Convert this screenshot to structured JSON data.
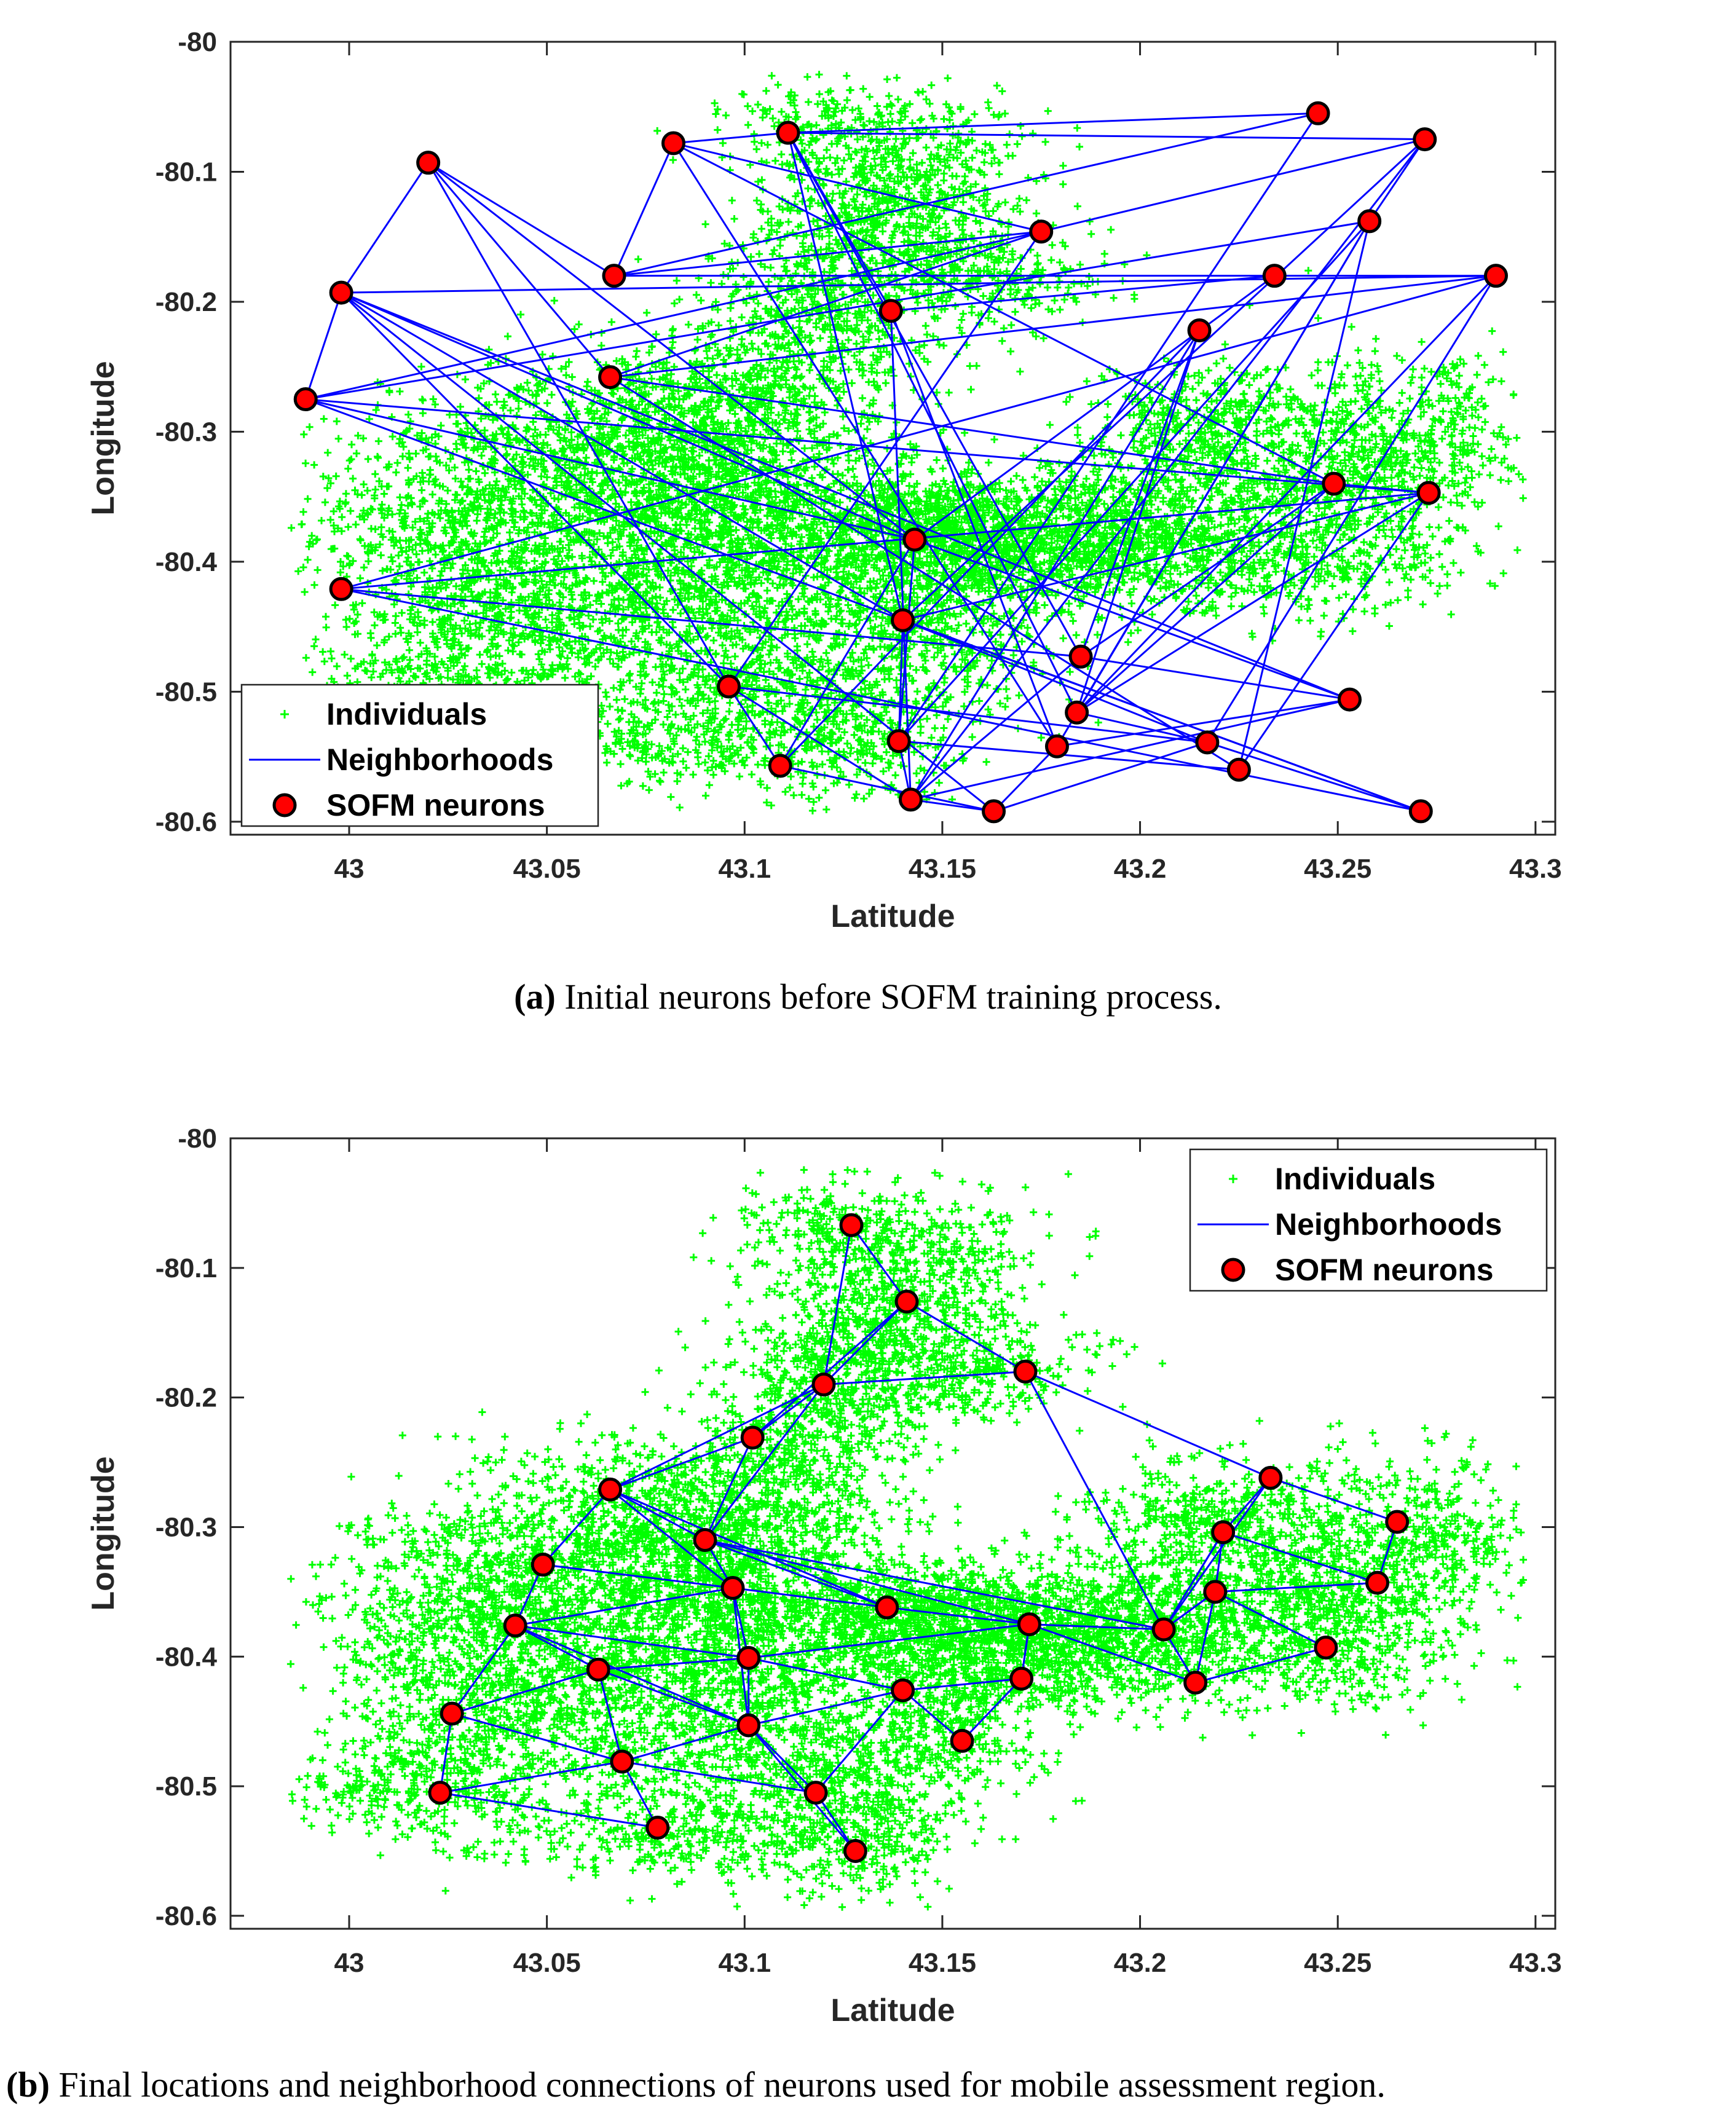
{
  "colors": {
    "individuals": "#00ff00",
    "neighborhoods": "#0000ff",
    "neuron_fill": "#ff0000",
    "neuron_edge": "#000000",
    "axes": "#262626"
  },
  "chart_data": [
    {
      "id": "a",
      "type": "scatter",
      "xlabel": "Latitude",
      "ylabel": "Longitude",
      "xlim": [
        42.97,
        43.305
      ],
      "ylim": [
        -80.61,
        -80.0
      ],
      "xticks": [
        43,
        43.05,
        43.1,
        43.15,
        43.2,
        43.25,
        43.3
      ],
      "yticks": [
        -80,
        -80.1,
        -80.2,
        -80.3,
        -80.4,
        -80.5,
        -80.6
      ],
      "xtick_labels": [
        "43",
        "43.05",
        "43.1",
        "43.15",
        "43.2",
        "43.25",
        "43.3"
      ],
      "ytick_labels": [
        "-80",
        "-80.1",
        "-80.2",
        "-80.3",
        "-80.4",
        "-80.5",
        "-80.6"
      ],
      "grid": false,
      "legend": {
        "position": "bottom-left",
        "entries": [
          "Individuals",
          "Neighborhoods",
          "SOFM neurons"
        ]
      },
      "caption_label": "(a)",
      "caption_text": " Initial neurons before SOFM training process.",
      "neurons": [
        [
          43.02,
          -80.093
        ],
        [
          43.082,
          -80.078
        ],
        [
          43.111,
          -80.07
        ],
        [
          43.245,
          -80.055
        ],
        [
          43.272,
          -80.075
        ],
        [
          42.998,
          -80.193
        ],
        [
          43.067,
          -80.18
        ],
        [
          43.175,
          -80.146
        ],
        [
          43.258,
          -80.138
        ],
        [
          43.234,
          -80.18
        ],
        [
          43.29,
          -80.18
        ],
        [
          43.137,
          -80.207
        ],
        [
          43.215,
          -80.222
        ],
        [
          42.989,
          -80.275
        ],
        [
          43.066,
          -80.258
        ],
        [
          43.249,
          -80.34
        ],
        [
          43.273,
          -80.347
        ],
        [
          43.143,
          -80.383
        ],
        [
          42.998,
          -80.421
        ],
        [
          43.14,
          -80.445
        ],
        [
          43.185,
          -80.473
        ],
        [
          43.096,
          -80.496
        ],
        [
          43.184,
          -80.516
        ],
        [
          43.253,
          -80.506
        ],
        [
          43.139,
          -80.538
        ],
        [
          43.179,
          -80.542
        ],
        [
          43.217,
          -80.539
        ],
        [
          43.109,
          -80.557
        ],
        [
          43.225,
          -80.56
        ],
        [
          43.142,
          -80.583
        ],
        [
          43.163,
          -80.592
        ],
        [
          43.271,
          -80.592
        ]
      ],
      "neighborhoods": [
        [
          0,
          5
        ],
        [
          0,
          6
        ],
        [
          0,
          17
        ],
        [
          0,
          21
        ],
        [
          0,
          14
        ],
        [
          1,
          2
        ],
        [
          1,
          6
        ],
        [
          1,
          7
        ],
        [
          1,
          15
        ],
        [
          1,
          25
        ],
        [
          2,
          3
        ],
        [
          2,
          4
        ],
        [
          2,
          11
        ],
        [
          2,
          19
        ],
        [
          2,
          22
        ],
        [
          2,
          20
        ],
        [
          3,
          6
        ],
        [
          3,
          24
        ],
        [
          4,
          7
        ],
        [
          4,
          19
        ],
        [
          4,
          29
        ],
        [
          4,
          8
        ],
        [
          5,
          13
        ],
        [
          5,
          10
        ],
        [
          5,
          17
        ],
        [
          5,
          19
        ],
        [
          5,
          21
        ],
        [
          5,
          23
        ],
        [
          5,
          30
        ],
        [
          6,
          9
        ],
        [
          6,
          7
        ],
        [
          7,
          13
        ],
        [
          7,
          14
        ],
        [
          7,
          21
        ],
        [
          8,
          13
        ],
        [
          8,
          22
        ],
        [
          8,
          24
        ],
        [
          8,
          28
        ],
        [
          8,
          25
        ],
        [
          9,
          11
        ],
        [
          9,
          17
        ],
        [
          9,
          10
        ],
        [
          10,
          14
        ],
        [
          10,
          18
        ],
        [
          10,
          26
        ],
        [
          10,
          22
        ],
        [
          11,
          29
        ],
        [
          11,
          25
        ],
        [
          12,
          20
        ],
        [
          12,
          22
        ],
        [
          12,
          29
        ],
        [
          12,
          27
        ],
        [
          13,
          16
        ],
        [
          13,
          31
        ],
        [
          13,
          17
        ],
        [
          14,
          15
        ],
        [
          14,
          28
        ],
        [
          16,
          18
        ],
        [
          16,
          22
        ],
        [
          16,
          28
        ],
        [
          16,
          19
        ],
        [
          17,
          24
        ],
        [
          17,
          27
        ],
        [
          18,
          20
        ],
        [
          18,
          31
        ],
        [
          19,
          24
        ],
        [
          19,
          26
        ],
        [
          19,
          31
        ],
        [
          20,
          23
        ],
        [
          20,
          29
        ],
        [
          21,
          27
        ],
        [
          21,
          26
        ],
        [
          22,
          26
        ],
        [
          23,
          25
        ],
        [
          24,
          29
        ],
        [
          24,
          28
        ],
        [
          25,
          30
        ],
        [
          26,
          31
        ],
        [
          27,
          30
        ],
        [
          29,
          30
        ],
        [
          30,
          26
        ],
        [
          15,
          16
        ],
        [
          21,
          29
        ],
        [
          22,
          15
        ],
        [
          23,
          29
        ],
        [
          23,
          17
        ],
        [
          15,
          20
        ]
      ]
    },
    {
      "id": "b",
      "type": "scatter",
      "xlabel": "Latitude",
      "ylabel": "Longitude",
      "xlim": [
        42.97,
        43.305
      ],
      "ylim": [
        -80.61,
        -80.0
      ],
      "xticks": [
        43,
        43.05,
        43.1,
        43.15,
        43.2,
        43.25,
        43.3
      ],
      "yticks": [
        -80,
        -80.1,
        -80.2,
        -80.3,
        -80.4,
        -80.5,
        -80.6
      ],
      "xtick_labels": [
        "43",
        "43.05",
        "43.1",
        "43.15",
        "43.2",
        "43.25",
        "43.3"
      ],
      "ytick_labels": [
        "-80",
        "-80.1",
        "-80.2",
        "-80.3",
        "-80.4",
        "-80.5",
        "-80.6"
      ],
      "grid": false,
      "legend": {
        "position": "top-right",
        "entries": [
          "Individuals",
          "Neighborhoods",
          "SOFM neurons"
        ]
      },
      "caption_label": "(b)",
      "caption_text": " Final locations and neighborhood connections of neurons used for mobile assessment region.",
      "neurons": [
        [
          43.127,
          -80.067
        ],
        [
          43.141,
          -80.126
        ],
        [
          43.171,
          -80.18
        ],
        [
          43.12,
          -80.19
        ],
        [
          43.102,
          -80.231
        ],
        [
          43.233,
          -80.262
        ],
        [
          43.265,
          -80.296
        ],
        [
          43.066,
          -80.271
        ],
        [
          43.221,
          -80.304
        ],
        [
          43.09,
          -80.31
        ],
        [
          43.049,
          -80.329
        ],
        [
          43.26,
          -80.343
        ],
        [
          43.219,
          -80.35
        ],
        [
          43.097,
          -80.347
        ],
        [
          43.136,
          -80.362
        ],
        [
          43.172,
          -80.375
        ],
        [
          43.206,
          -80.379
        ],
        [
          43.042,
          -80.376
        ],
        [
          43.247,
          -80.393
        ],
        [
          43.101,
          -80.401
        ],
        [
          43.063,
          -80.41
        ],
        [
          43.17,
          -80.417
        ],
        [
          43.214,
          -80.42
        ],
        [
          43.14,
          -80.426
        ],
        [
          43.101,
          -80.453
        ],
        [
          43.026,
          -80.444
        ],
        [
          43.155,
          -80.465
        ],
        [
          43.069,
          -80.481
        ],
        [
          43.023,
          -80.505
        ],
        [
          43.118,
          -80.505
        ],
        [
          43.078,
          -80.532
        ],
        [
          43.128,
          -80.55
        ]
      ],
      "neighborhoods": [
        [
          0,
          1
        ],
        [
          0,
          3
        ],
        [
          1,
          2
        ],
        [
          1,
          3
        ],
        [
          1,
          4
        ],
        [
          2,
          3
        ],
        [
          2,
          16
        ],
        [
          2,
          5
        ],
        [
          3,
          4
        ],
        [
          3,
          9
        ],
        [
          3,
          7
        ],
        [
          4,
          7
        ],
        [
          4,
          9
        ],
        [
          7,
          9
        ],
        [
          7,
          10
        ],
        [
          7,
          13
        ],
        [
          7,
          14
        ],
        [
          9,
          13
        ],
        [
          9,
          15
        ],
        [
          9,
          16
        ],
        [
          9,
          14
        ],
        [
          10,
          13
        ],
        [
          10,
          17
        ],
        [
          13,
          14
        ],
        [
          13,
          19
        ],
        [
          13,
          17
        ],
        [
          14,
          15
        ],
        [
          15,
          16
        ],
        [
          15,
          19
        ],
        [
          15,
          21
        ],
        [
          16,
          22
        ],
        [
          16,
          8
        ],
        [
          16,
          12
        ],
        [
          16,
          5
        ],
        [
          8,
          5
        ],
        [
          8,
          12
        ],
        [
          5,
          6
        ],
        [
          6,
          11
        ],
        [
          8,
          11
        ],
        [
          8,
          16
        ],
        [
          11,
          12
        ],
        [
          12,
          18
        ],
        [
          12,
          16
        ],
        [
          18,
          22
        ],
        [
          22,
          15
        ],
        [
          17,
          19
        ],
        [
          17,
          20
        ],
        [
          17,
          25
        ],
        [
          17,
          24
        ],
        [
          19,
          20
        ],
        [
          19,
          23
        ],
        [
          19,
          24
        ],
        [
          20,
          24
        ],
        [
          20,
          27
        ],
        [
          20,
          25
        ],
        [
          21,
          23
        ],
        [
          21,
          26
        ],
        [
          21,
          15
        ],
        [
          23,
          26
        ],
        [
          23,
          24
        ],
        [
          23,
          29
        ],
        [
          24,
          27
        ],
        [
          24,
          29
        ],
        [
          24,
          31
        ],
        [
          25,
          28
        ],
        [
          25,
          27
        ],
        [
          27,
          28
        ],
        [
          27,
          29
        ],
        [
          27,
          30
        ],
        [
          28,
          30
        ],
        [
          29,
          31
        ],
        [
          13,
          24
        ],
        [
          12,
          22
        ]
      ]
    }
  ]
}
